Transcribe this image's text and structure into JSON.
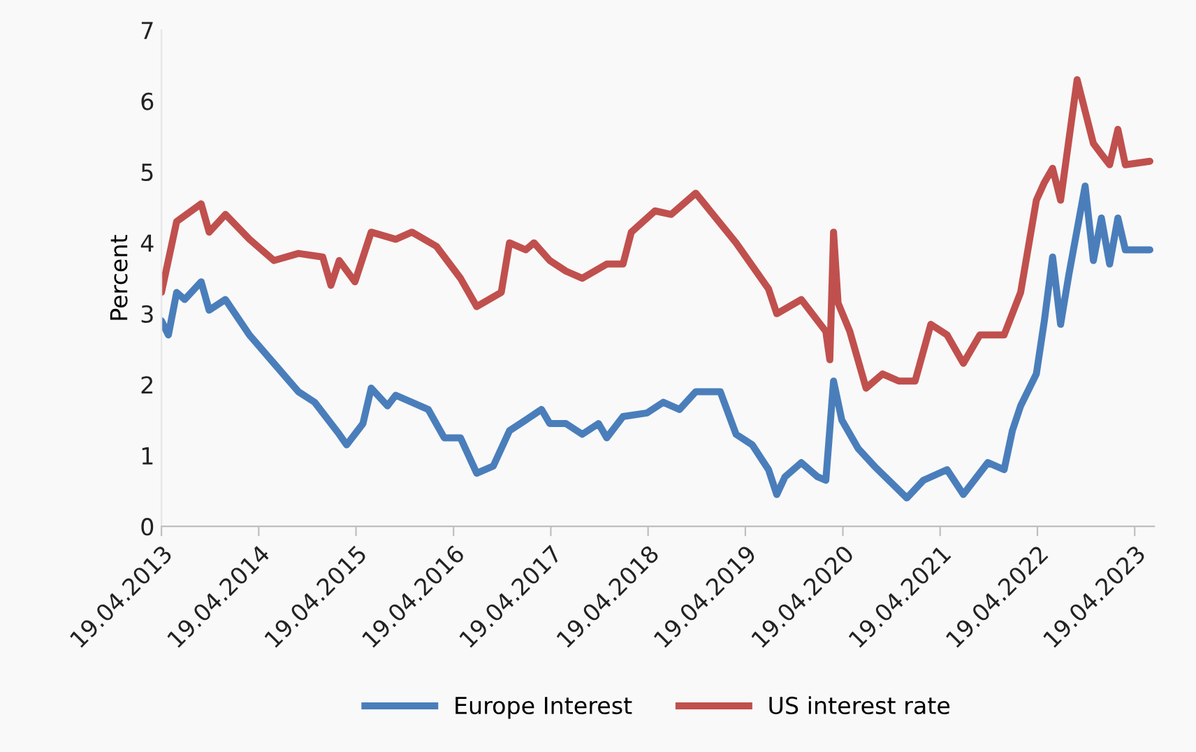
{
  "chart_data": {
    "type": "line",
    "ylabel": "Percent",
    "legend": "bottom",
    "grid": false,
    "line_style": "solid",
    "marker": "none",
    "ylim": [
      0,
      7
    ],
    "yticks": [
      0,
      1,
      2,
      3,
      4,
      5,
      6,
      7
    ],
    "xlim": [
      "2013-04-19",
      "2023-07-01"
    ],
    "xticks": [
      {
        "value": "2013-04-19",
        "label": "19.04.2013"
      },
      {
        "value": "2014-04-19",
        "label": "19.04.2014"
      },
      {
        "value": "2015-04-19",
        "label": "19.04.2015"
      },
      {
        "value": "2016-04-19",
        "label": "19.04.2016"
      },
      {
        "value": "2017-04-19",
        "label": "19.04.2017"
      },
      {
        "value": "2018-04-19",
        "label": "19.04.2018"
      },
      {
        "value": "2019-04-19",
        "label": "19.04.2019"
      },
      {
        "value": "2020-04-19",
        "label": "19.04.2020"
      },
      {
        "value": "2021-04-19",
        "label": "19.04.2021"
      },
      {
        "value": "2022-04-19",
        "label": "19.04.2022"
      },
      {
        "value": "2023-04-19",
        "label": "19.04.2023"
      }
    ],
    "series": [
      {
        "name": "Europe Interest",
        "color": "#4a7ebb",
        "x": [
          "2013-04-19",
          "2013-05-15",
          "2013-06-15",
          "2013-07-15",
          "2013-09-15",
          "2013-10-15",
          "2013-12-15",
          "2014-03-15",
          "2014-06-15",
          "2014-09-15",
          "2014-11-15",
          "2015-02-15",
          "2015-03-15",
          "2015-05-15",
          "2015-06-15",
          "2015-08-15",
          "2015-09-15",
          "2016-01-15",
          "2016-03-15",
          "2016-05-15",
          "2016-07-15",
          "2016-09-15",
          "2016-11-15",
          "2017-01-15",
          "2017-03-15",
          "2017-04-15",
          "2017-06-15",
          "2017-08-15",
          "2017-10-15",
          "2017-11-15",
          "2018-01-15",
          "2018-04-15",
          "2018-06-15",
          "2018-08-15",
          "2018-10-15",
          "2019-01-15",
          "2019-03-15",
          "2019-05-15",
          "2019-07-15",
          "2019-08-15",
          "2019-09-15",
          "2019-11-15",
          "2020-01-15",
          "2020-02-15",
          "2020-03-15",
          "2020-04-15",
          "2020-06-15",
          "2020-08-15",
          "2020-12-15",
          "2021-02-15",
          "2021-05-15",
          "2021-07-15",
          "2021-10-15",
          "2021-12-15",
          "2022-01-15",
          "2022-02-15",
          "2022-04-15",
          "2022-05-15",
          "2022-06-15",
          "2022-07-15",
          "2022-08-15",
          "2022-10-15",
          "2022-11-15",
          "2022-12-15",
          "2023-01-15",
          "2023-02-15",
          "2023-03-15",
          "2023-06-15"
        ],
        "values": [
          2.9,
          2.7,
          3.3,
          3.2,
          3.45,
          3.05,
          3.2,
          2.7,
          2.3,
          1.9,
          1.75,
          1.3,
          1.15,
          1.45,
          1.95,
          1.7,
          1.85,
          1.65,
          1.25,
          1.25,
          0.75,
          0.85,
          1.35,
          1.5,
          1.65,
          1.45,
          1.45,
          1.3,
          1.45,
          1.25,
          1.55,
          1.6,
          1.75,
          1.65,
          1.9,
          1.9,
          1.3,
          1.15,
          0.8,
          0.45,
          0.7,
          0.9,
          0.7,
          0.65,
          2.05,
          1.5,
          1.1,
          0.85,
          0.4,
          0.65,
          0.8,
          0.45,
          0.9,
          0.8,
          1.35,
          1.7,
          2.15,
          2.9,
          3.8,
          2.85,
          3.55,
          4.8,
          3.75,
          4.35,
          3.7,
          4.35,
          3.9,
          3.9
        ]
      },
      {
        "name": "US interest rate",
        "color": "#c0504d",
        "x": [
          "2013-04-19",
          "2013-06-15",
          "2013-09-15",
          "2013-10-15",
          "2013-12-15",
          "2014-03-15",
          "2014-06-15",
          "2014-09-15",
          "2014-12-15",
          "2015-01-15",
          "2015-02-15",
          "2015-04-15",
          "2015-06-15",
          "2015-09-15",
          "2015-11-15",
          "2016-02-15",
          "2016-05-15",
          "2016-07-15",
          "2016-10-15",
          "2016-11-15",
          "2017-01-15",
          "2017-02-15",
          "2017-04-15",
          "2017-06-15",
          "2017-08-15",
          "2017-11-15",
          "2018-01-15",
          "2018-02-15",
          "2018-05-15",
          "2018-07-15",
          "2018-10-15",
          "2019-03-15",
          "2019-07-15",
          "2019-08-15",
          "2019-11-15",
          "2020-02-15",
          "2020-03-01",
          "2020-03-15",
          "2020-04-01",
          "2020-05-15",
          "2020-07-15",
          "2020-09-15",
          "2020-11-15",
          "2021-01-15",
          "2021-03-15",
          "2021-05-15",
          "2021-07-15",
          "2021-09-15",
          "2021-12-15",
          "2022-02-15",
          "2022-04-15",
          "2022-05-15",
          "2022-06-15",
          "2022-07-15",
          "2022-09-15",
          "2022-11-15",
          "2022-12-15",
          "2023-01-15",
          "2023-02-15",
          "2023-03-15",
          "2023-06-15"
        ],
        "values": [
          3.3,
          4.3,
          4.55,
          4.15,
          4.4,
          4.05,
          3.75,
          3.85,
          3.8,
          3.4,
          3.75,
          3.45,
          4.15,
          4.05,
          4.15,
          3.95,
          3.5,
          3.1,
          3.3,
          4.0,
          3.9,
          4.0,
          3.75,
          3.6,
          3.5,
          3.7,
          3.7,
          4.15,
          4.45,
          4.4,
          4.7,
          4.0,
          3.35,
          3.0,
          3.2,
          2.75,
          2.35,
          4.15,
          3.15,
          2.75,
          1.95,
          2.15,
          2.05,
          2.05,
          2.85,
          2.7,
          2.3,
          2.7,
          2.7,
          3.3,
          4.6,
          4.85,
          5.05,
          4.6,
          6.3,
          5.4,
          5.25,
          5.1,
          5.6,
          5.1,
          5.15
        ]
      }
    ]
  }
}
